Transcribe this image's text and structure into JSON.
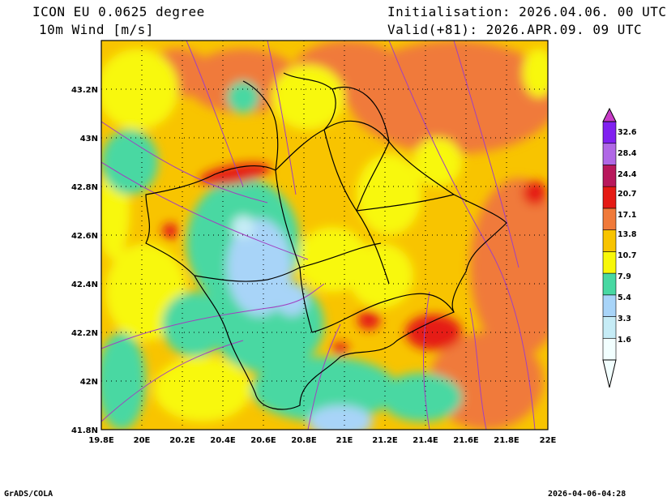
{
  "header": {
    "model_title": "ICON EU 0.0625 degree",
    "variable_title": "10m Wind [m/s]",
    "initialisation": "Initialisation: 2026.04.06. 00 UTC",
    "valid": "Valid(+81): 2026.APR.09. 09 UTC"
  },
  "map": {
    "lon_range": [
      19.8,
      22.0
    ],
    "lat_range": [
      41.8,
      43.4
    ],
    "x_ticks": [
      "19.8E",
      "20E",
      "20.2E",
      "20.4E",
      "20.6E",
      "20.8E",
      "21E",
      "21.2E",
      "21.4E",
      "21.6E",
      "21.8E",
      "22E"
    ],
    "y_ticks": [
      "41.8N",
      "42N",
      "42.2N",
      "42.4N",
      "42.6N",
      "42.8N",
      "43N",
      "43.2N"
    ],
    "gridlines": "dotted",
    "streamline_color": "#a040c0"
  },
  "colorbar": {
    "labels": [
      "1.6",
      "3.3",
      "5.4",
      "7.9",
      "10.7",
      "13.8",
      "17.1",
      "20.7",
      "24.4",
      "28.4",
      "32.6"
    ],
    "colors": [
      "#f2ffff",
      "#c6ecf6",
      "#a8d4f8",
      "#48d8a2",
      "#f8f808",
      "#f8c400",
      "#f07a3a",
      "#e51a14",
      "#b8185c",
      "#b068e6",
      "#8020f0",
      "#c83cc8"
    ]
  },
  "footer": {
    "credit": "GrADS/COLA",
    "timestamp": "2026-04-06-04:28"
  }
}
